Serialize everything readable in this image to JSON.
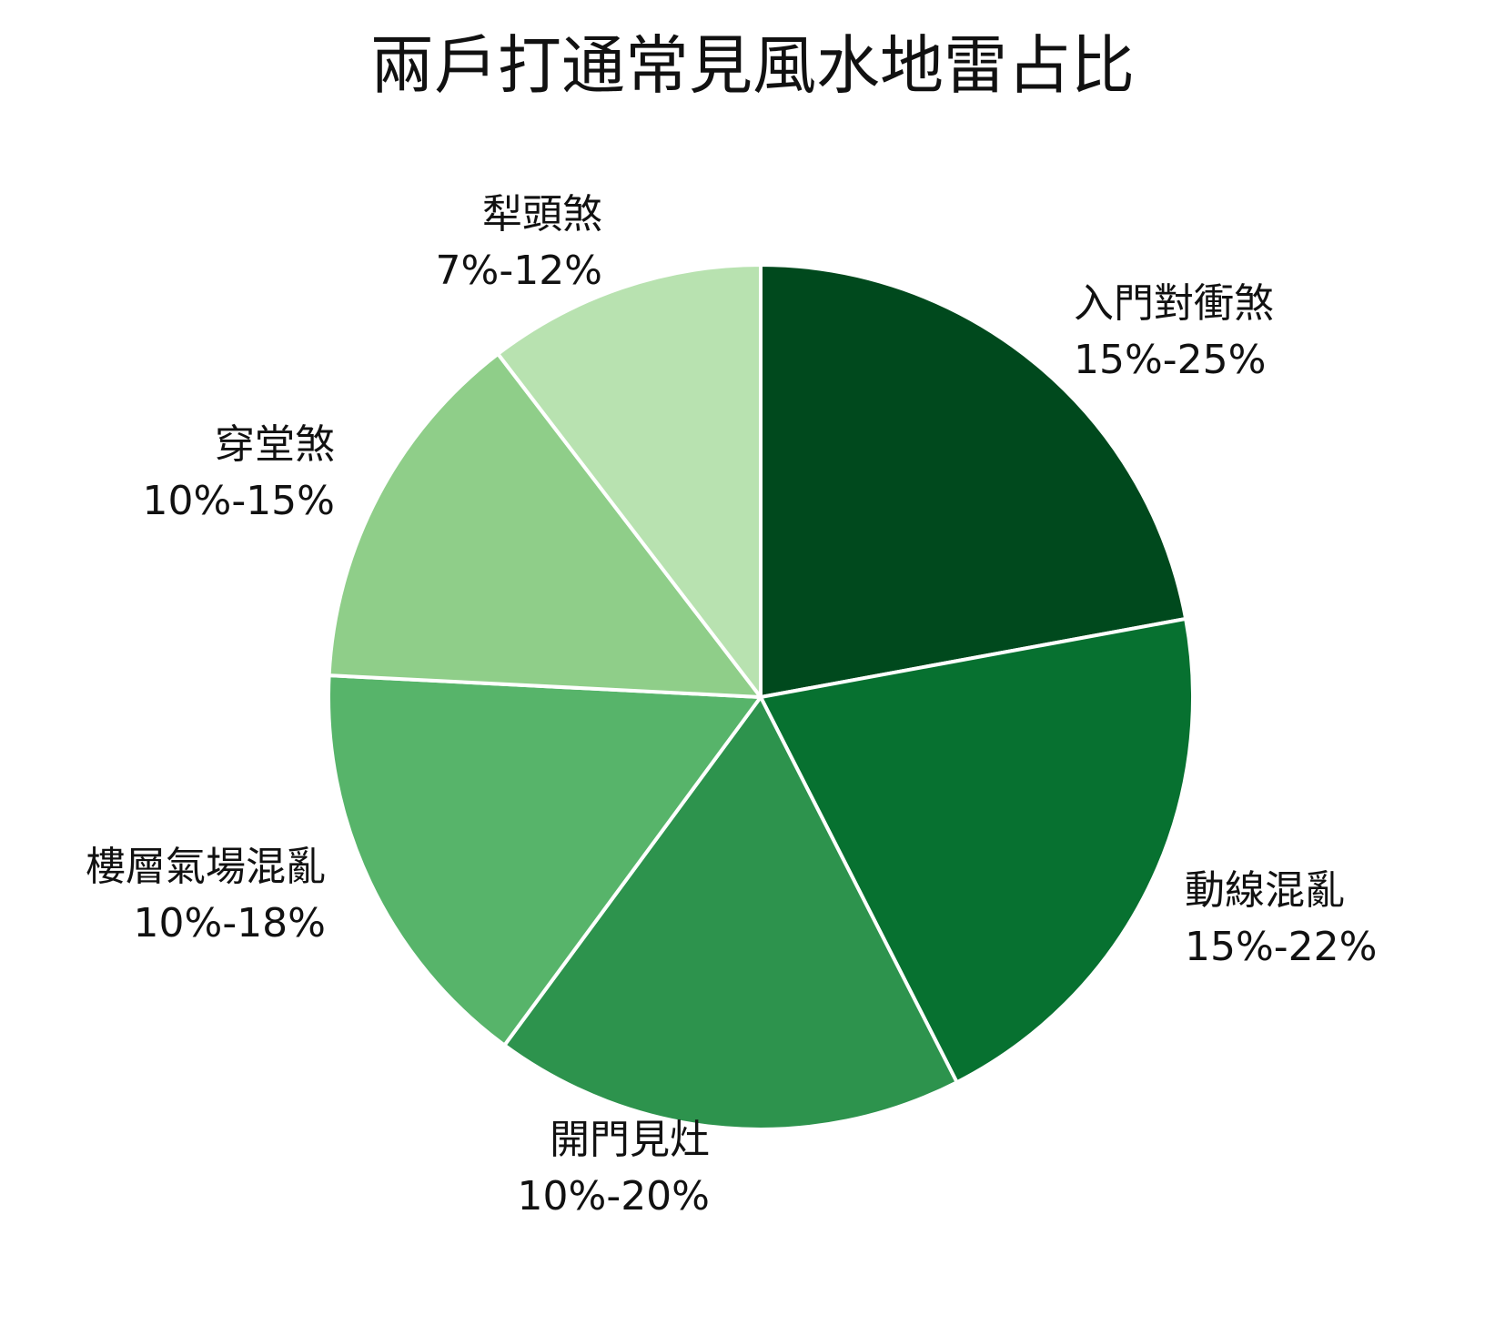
{
  "chart_data": {
    "type": "pie",
    "title": "兩戶打通常見風水地雷占比",
    "start_angle_deg": 0,
    "direction": "clockwise",
    "slices": [
      {
        "label": "入門對衝煞",
        "range": "15%-25%",
        "share": 22.1,
        "color": "#00491D"
      },
      {
        "label": "動線混亂",
        "range": "15%-22%",
        "share": 20.4,
        "color": "#077130"
      },
      {
        "label": "開門見灶",
        "range": "10%-20%",
        "share": 17.6,
        "color": "#2D934D"
      },
      {
        "label": "樓層氣場混亂",
        "range": "10%-18%",
        "share": 15.7,
        "color": "#57B46A"
      },
      {
        "label": "穿堂煞",
        "range": "10%-15%",
        "share": 13.8,
        "color": "#8FCE89"
      },
      {
        "label": "犁頭煞",
        "range": "7%-12%",
        "share": 10.4,
        "color": "#B8E2B0"
      }
    ],
    "legend": "none"
  }
}
